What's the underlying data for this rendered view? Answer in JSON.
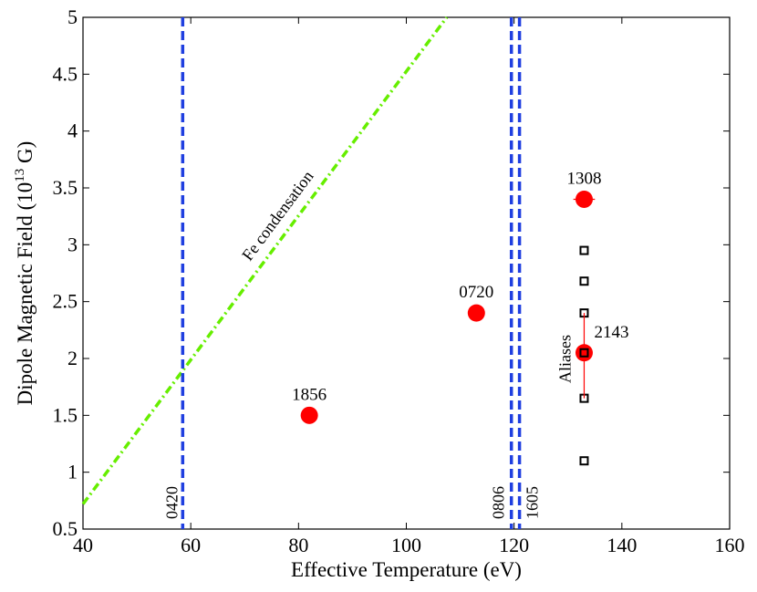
{
  "chart_data": {
    "type": "scatter",
    "xlabel": "Effective Temperature (eV)",
    "ylabel": {
      "prefix": "Dipole Magnetic Field (10",
      "sup": "13",
      "suffix": " G)"
    },
    "xlim": [
      40,
      160
    ],
    "ylim": [
      0.5,
      5
    ],
    "xticks": [
      "40",
      "60",
      "80",
      "100",
      "120",
      "140",
      "160"
    ],
    "yticks": [
      "0.5",
      "1",
      "1.5",
      "2",
      "2.5",
      "3",
      "3.5",
      "4",
      "4.5",
      "5"
    ],
    "grid": false,
    "colors": {
      "points": "#ff0000",
      "vlines": "#1f3fe0",
      "fe_line": "#66ee00",
      "aliases": "#000000"
    },
    "points": [
      {
        "label": "1856",
        "x": 82,
        "y": 1.5
      },
      {
        "label": "0720",
        "x": 113,
        "y": 2.4
      },
      {
        "label": "1308",
        "x": 133,
        "y": 3.4,
        "xerr": [
          131,
          135
        ]
      },
      {
        "label": "2143",
        "x": 133,
        "y": 2.05,
        "yerr": [
          1.65,
          2.4
        ]
      }
    ],
    "vlines": [
      {
        "label": "0420",
        "x": 58.5
      },
      {
        "label": "0806",
        "x": 119.5
      },
      {
        "label": "1605",
        "x": 121
      }
    ],
    "fe_condensation": {
      "label": "Fe condensation",
      "x": [
        40,
        107.5
      ],
      "y": [
        0.72,
        5
      ]
    },
    "aliases": {
      "label": "Aliases",
      "x": 133,
      "y": [
        1.1,
        1.65,
        2.05,
        2.4,
        2.68,
        2.95
      ]
    }
  }
}
